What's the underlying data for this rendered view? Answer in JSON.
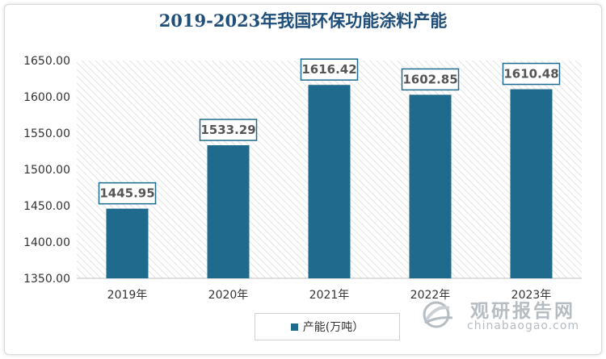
{
  "chart_data": {
    "type": "bar",
    "title": "2019-2023年我国环保功能涂料产能",
    "categories": [
      "2019年",
      "2020年",
      "2021年",
      "2022年",
      "2023年"
    ],
    "series": [
      {
        "name": "产能(万吨）",
        "values": [
          1445.95,
          1533.29,
          1616.42,
          1602.85,
          1610.48
        ]
      }
    ],
    "data_labels": [
      "1445.95",
      "1533.29",
      "1616.42",
      "1602.85",
      "1610.48"
    ],
    "yticks": [
      "1350.00",
      "1400.00",
      "1450.00",
      "1500.00",
      "1550.00",
      "1600.00",
      "1650.00"
    ],
    "ylim": [
      1350,
      1650
    ],
    "legend_position": "bottom",
    "bar_color": "#1f6b8e"
  },
  "watermark": {
    "cn": "观研报告网",
    "en": "chinabaogao.com",
    "icon": "globe-logo-icon"
  }
}
